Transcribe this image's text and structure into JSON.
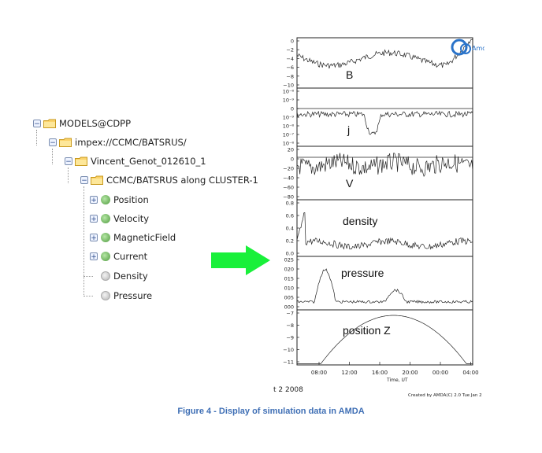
{
  "tree": {
    "root": "MODELS@CDPP",
    "level1": "impex://CCMC/BATSRUS/",
    "level2": "Vincent_Genot_012610_1",
    "level3": "CCMC/BATSRUS along CLUSTER-1",
    "parameters": [
      {
        "label": "Position",
        "state": "expandable"
      },
      {
        "label": "Velocity",
        "state": "expandable"
      },
      {
        "label": "MagneticField",
        "state": "expandable"
      },
      {
        "label": "Current",
        "state": "expandable"
      },
      {
        "label": "Density",
        "state": "leaf"
      },
      {
        "label": "Pressure",
        "state": "leaf"
      }
    ],
    "toggle_symbol": "−",
    "expand_symbol": "+"
  },
  "arrow": {
    "color": "#19f03a"
  },
  "plot": {
    "logo_text": "Amda",
    "panels": [
      {
        "label": "B",
        "ticks": [
          "0",
          "−2",
          "−4",
          "−6",
          "−8",
          "−10"
        ]
      },
      {
        "label": "j",
        "ticks": [
          "10⁻⁸",
          "10⁻⁹",
          "0",
          "10⁻⁹",
          "10⁻⁸",
          "10⁻⁷",
          "10⁻⁸"
        ]
      },
      {
        "label": "V",
        "ticks": [
          "20",
          "0",
          "−20",
          "−40",
          "−60",
          "−80"
        ]
      },
      {
        "label": "density",
        "ticks": [
          "0.8",
          "0.6",
          "0.4",
          "0.2",
          "0.0"
        ]
      },
      {
        "label": "pressure",
        "ticks": [
          "025",
          "020",
          "015",
          "010",
          "005",
          "000"
        ]
      },
      {
        "label": "position Z",
        "ticks": [
          "−7",
          "−8",
          "−9",
          "−10",
          "−11"
        ]
      }
    ],
    "xticks": [
      "08:00",
      "12:00",
      "16:00",
      "20:00",
      "00:00",
      "04:00"
    ],
    "xlabel": "Time, UT",
    "date_text": "t  2 2008",
    "credit": "Created by AMDA(C)  2.0 Tue Jan 2"
  },
  "caption": "Figure 4 - Display of simulation data in AMDA"
}
